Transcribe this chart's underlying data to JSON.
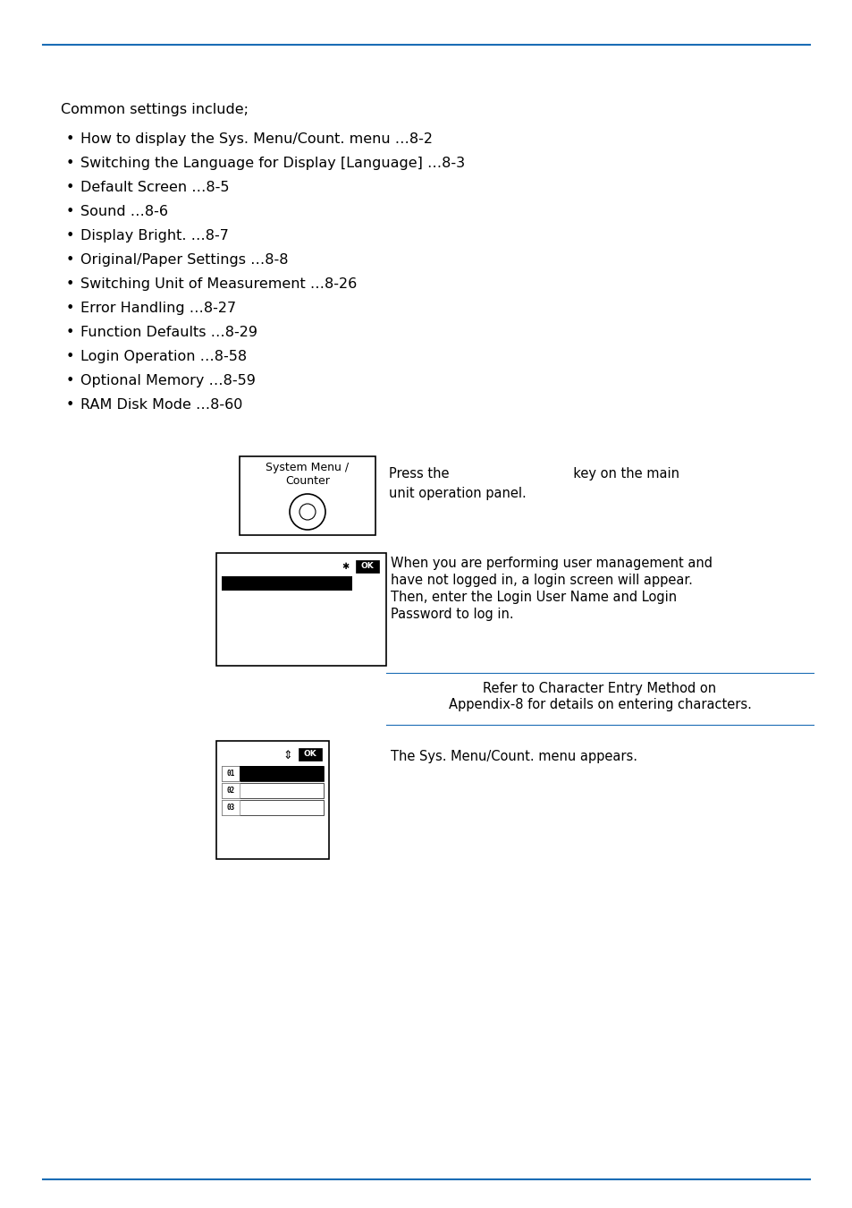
{
  "bg_color": "#ffffff",
  "line_color": "#1a6cb5",
  "text_color": "#000000",
  "font_size": 11.5,
  "small_font_size": 10.5,
  "intro_text": "Common settings include;",
  "bullet_items": [
    "How to display the Sys. Menu/Count. menu …8-2",
    "Switching the Language for Display [Language] …8-3",
    "Default Screen …8-5",
    "Sound …8-6",
    "Display Bright. …8-7",
    "Original/Paper Settings …8-8",
    "Switching Unit of Measurement …8-26",
    "Error Handling …8-27",
    "Function Defaults …8-29",
    "Login Operation …8-58",
    "Optional Memory …8-59",
    "RAM Disk Mode …8-60"
  ],
  "press_text_left": "Press the",
  "press_text_right": "key on the main",
  "press_text_line2": "unit operation panel.",
  "login_para": [
    "When you are performing user management and",
    "have not logged in, a login screen will appear.",
    "Then, enter the Login User Name and Login",
    "Password to log in."
  ],
  "ref_para": [
    "Refer to Character Entry Method on",
    "Appendix-8 for details on entering characters."
  ],
  "menu_appears": "The Sys. Menu/Count. menu appears."
}
